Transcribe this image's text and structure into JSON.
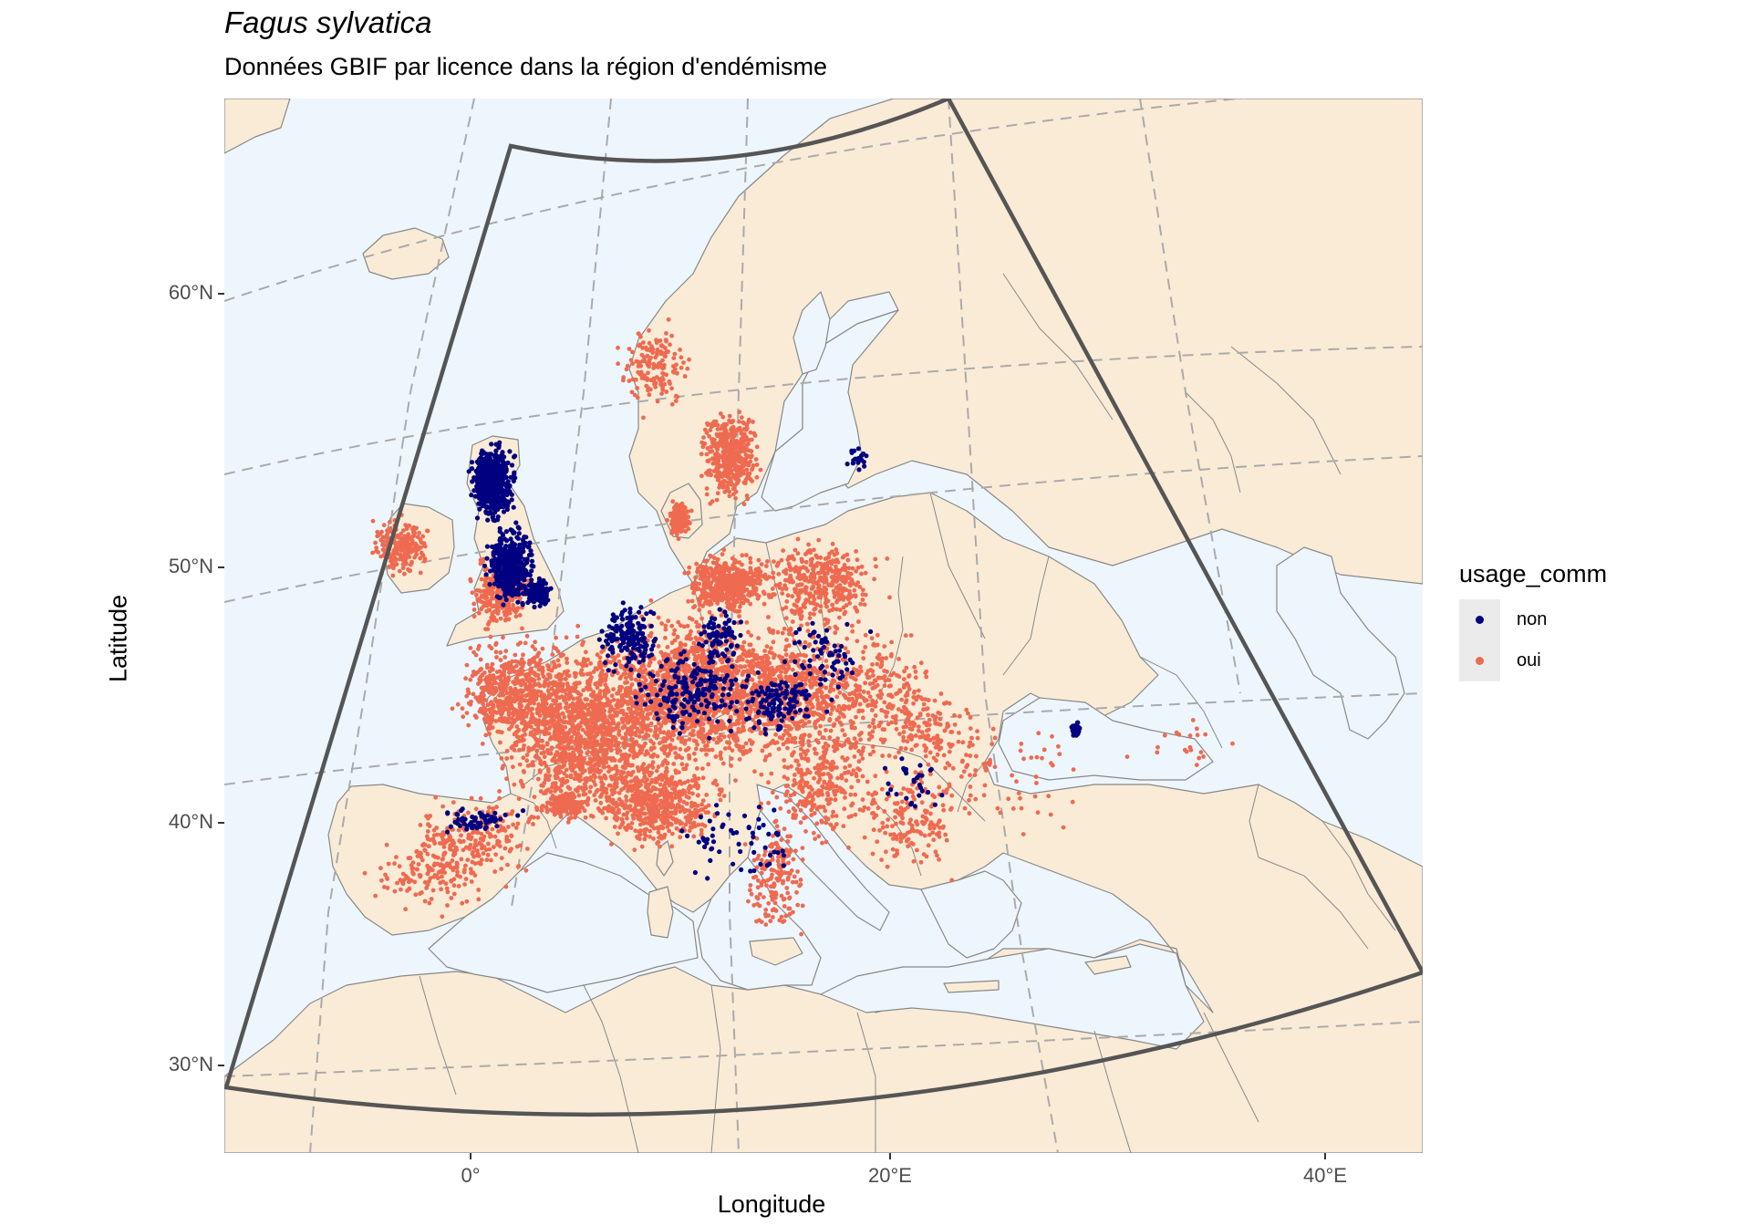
{
  "title": "Fagus sylvatica",
  "subtitle": "Données GBIF par licence dans la région d'endémisme",
  "axes": {
    "x_label": "Longitude",
    "y_label": "Latitude",
    "x_ticks": [
      "0°",
      "20°E",
      "40°E"
    ],
    "y_ticks": [
      "60°N",
      "50°N",
      "40°N",
      "30°N"
    ]
  },
  "legend": {
    "title": "usage_comm",
    "items": [
      {
        "label": "non",
        "color": "#000080"
      },
      {
        "label": "oui",
        "color": "#EE6A50"
      }
    ]
  },
  "colors": {
    "sea": "#EEF6FD",
    "land": "#FAEBD7",
    "border": "#888888",
    "graticule": "#AAAAAA",
    "region_outline": "#555555",
    "non": "#000080",
    "oui": "#EE6A50"
  }
}
